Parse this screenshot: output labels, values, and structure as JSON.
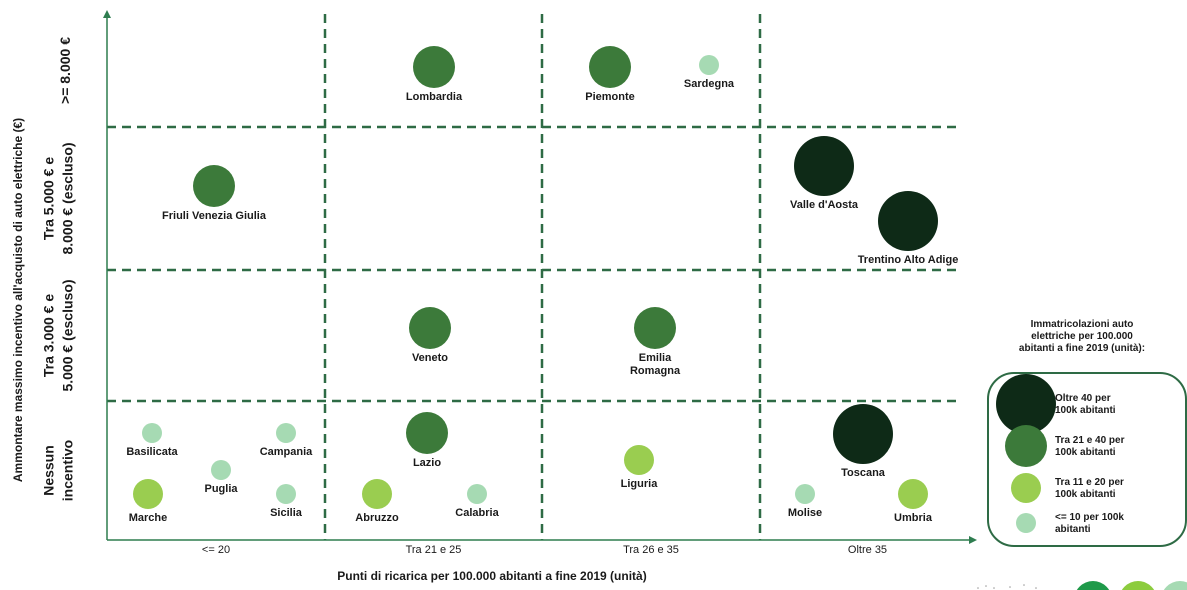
{
  "chart_data": {
    "type": "scatter",
    "xlabel": "Punti di ricarica per 100.000 abitanti a fine 2019 (unità)",
    "ylabel": "Ammontare massimo incentivo all'acquisto di auto elettriche (€)",
    "x_categories": [
      "<= 20",
      "Tra 21 e 25",
      "Tra 26 e 35",
      "Oltre 35"
    ],
    "y_categories": [
      {
        "lines": [
          "Nessun",
          "incentivo"
        ]
      },
      {
        "lines": [
          "Tra 3.000 € e",
          "5.000 € (escluso)"
        ]
      },
      {
        "lines": [
          "Tra 5.000 € e",
          "8.000 € (escluso)"
        ]
      },
      {
        "lines": [
          ">= 8.000 €"
        ]
      }
    ],
    "size_legend": {
      "title_lines": [
        "Immatricolazioni auto",
        "elettriche per 100.000",
        "abitanti a fine 2019 (unità):"
      ],
      "classes": [
        {
          "lines": [
            "Oltre 40 per",
            "100k abitanti"
          ],
          "color": "#0e2a17"
        },
        {
          "lines": [
            "Tra 21 e 40 per",
            "100k abitanti"
          ],
          "color": "#3c7a3a"
        },
        {
          "lines": [
            "Tra 11 e 20 per",
            "100k abitanti"
          ],
          "color": "#9acd50"
        },
        {
          "lines": [
            "<= 10 per 100k",
            "abitanti"
          ],
          "color": "#a6dab3"
        }
      ]
    },
    "points": [
      {
        "lines": [
          "Lombardia"
        ],
        "x_cat": 1,
        "y_cat": 3,
        "class": 1
      },
      {
        "lines": [
          "Piemonte"
        ],
        "x_cat": 2,
        "y_cat": 3,
        "class": 1
      },
      {
        "lines": [
          "Sardegna"
        ],
        "x_cat": 2,
        "y_cat": 3,
        "class": 3
      },
      {
        "lines": [
          "Friuli Venezia Giulia"
        ],
        "x_cat": 0,
        "y_cat": 2,
        "class": 1
      },
      {
        "lines": [
          "Valle d'Aosta"
        ],
        "x_cat": 3,
        "y_cat": 2,
        "class": 0
      },
      {
        "lines": [
          "Trentino Alto Adige"
        ],
        "x_cat": 3,
        "y_cat": 2,
        "class": 0
      },
      {
        "lines": [
          "Veneto"
        ],
        "x_cat": 1,
        "y_cat": 1,
        "class": 1
      },
      {
        "lines": [
          "Emilia",
          "Romagna"
        ],
        "x_cat": 2,
        "y_cat": 1,
        "class": 1
      },
      {
        "lines": [
          "Basilicata"
        ],
        "x_cat": 0,
        "y_cat": 0,
        "class": 3
      },
      {
        "lines": [
          "Campania"
        ],
        "x_cat": 0,
        "y_cat": 0,
        "class": 3
      },
      {
        "lines": [
          "Puglia"
        ],
        "x_cat": 0,
        "y_cat": 0,
        "class": 3
      },
      {
        "lines": [
          "Marche"
        ],
        "x_cat": 0,
        "y_cat": 0,
        "class": 2
      },
      {
        "lines": [
          "Sicilia"
        ],
        "x_cat": 0,
        "y_cat": 0,
        "class": 3
      },
      {
        "lines": [
          "Lazio"
        ],
        "x_cat": 1,
        "y_cat": 0,
        "class": 1
      },
      {
        "lines": [
          "Abruzzo"
        ],
        "x_cat": 1,
        "y_cat": 0,
        "class": 2
      },
      {
        "lines": [
          "Calabria"
        ],
        "x_cat": 1,
        "y_cat": 0,
        "class": 3
      },
      {
        "lines": [
          "Liguria"
        ],
        "x_cat": 2,
        "y_cat": 0,
        "class": 2
      },
      {
        "lines": [
          "Toscana"
        ],
        "x_cat": 3,
        "y_cat": 0,
        "class": 0
      },
      {
        "lines": [
          "Molise"
        ],
        "x_cat": 3,
        "y_cat": 0,
        "class": 3
      },
      {
        "lines": [
          "Umbria"
        ],
        "x_cat": 3,
        "y_cat": 0,
        "class": 2
      }
    ],
    "colors": {
      "grid": "#2e6b45",
      "axis": "#2e7d4f",
      "legend_border": "#2e6b45",
      "logo": [
        "#1f9a4a",
        "#8ccc3e",
        "#a6dab3"
      ]
    }
  }
}
